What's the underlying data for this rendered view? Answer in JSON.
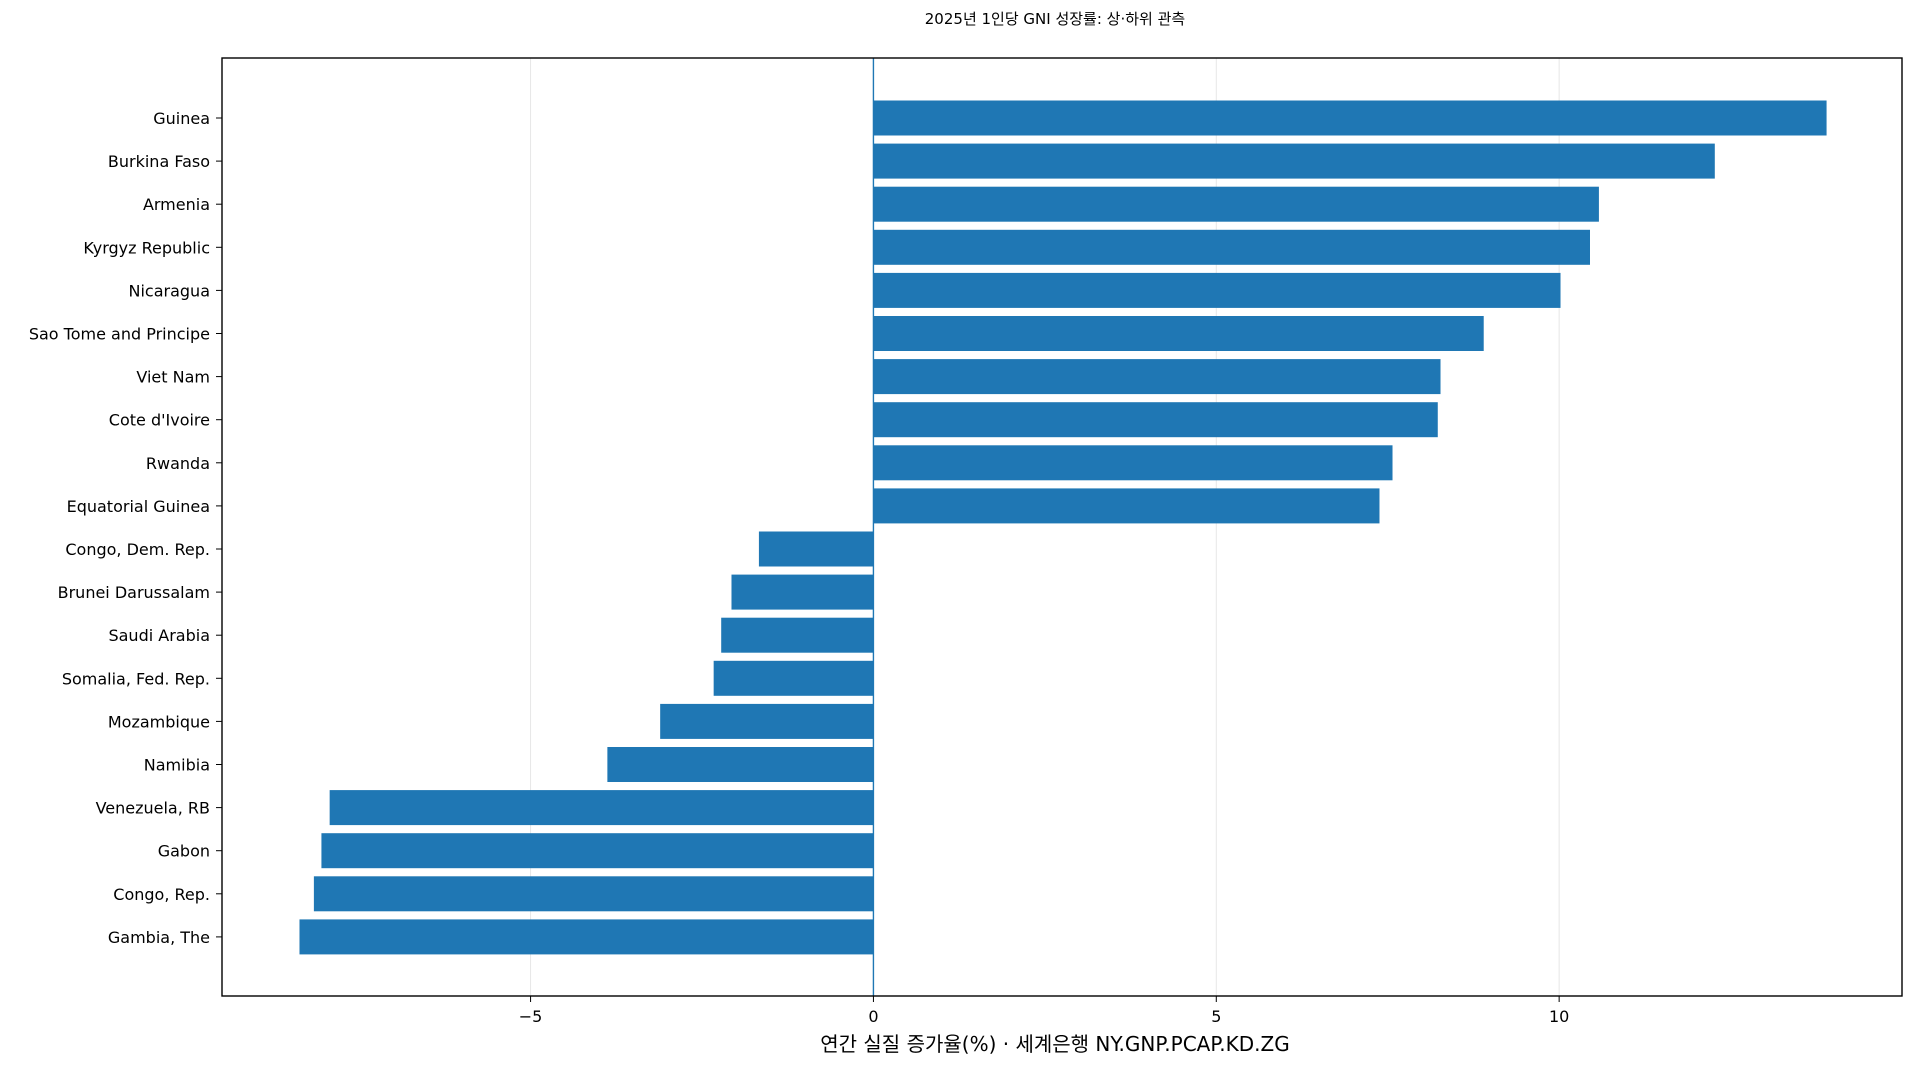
{
  "chart_data": {
    "type": "bar",
    "orientation": "horizontal",
    "title": "2025년 1인당 GNI 성장률: 상·하위 관측",
    "xlabel": "연간 실질 증가율(%) · 세계은행 NY.GNP.PCAP.KD.ZG",
    "ylabel": "",
    "xlim": [
      -9.5,
      15
    ],
    "xticks": [
      -5,
      0,
      5,
      10
    ],
    "xtick_labels": [
      "−5",
      "0",
      "5",
      "10"
    ],
    "grid": "vertical",
    "reference_line": 0,
    "bar_color": "#1f77b4",
    "categories": [
      "Guinea",
      "Burkina Faso",
      "Armenia",
      "Kyrgyz Republic",
      "Nicaragua",
      "Sao Tome and Principe",
      "Viet Nam",
      "Cote d'Ivoire",
      "Rwanda",
      "Equatorial Guinea",
      "Congo, Dem. Rep.",
      "Brunei Darussalam",
      "Saudi Arabia",
      "Somalia, Fed. Rep.",
      "Mozambique",
      "Namibia",
      "Venezuela, RB",
      "Gabon",
      "Congo, Rep.",
      "Gambia, The"
    ],
    "values": [
      13.9,
      12.27,
      10.58,
      10.45,
      10.02,
      8.9,
      8.27,
      8.23,
      7.57,
      7.38,
      -1.67,
      -2.07,
      -2.22,
      -2.33,
      -3.11,
      -3.88,
      -7.93,
      -8.05,
      -8.16,
      -8.37
    ]
  }
}
